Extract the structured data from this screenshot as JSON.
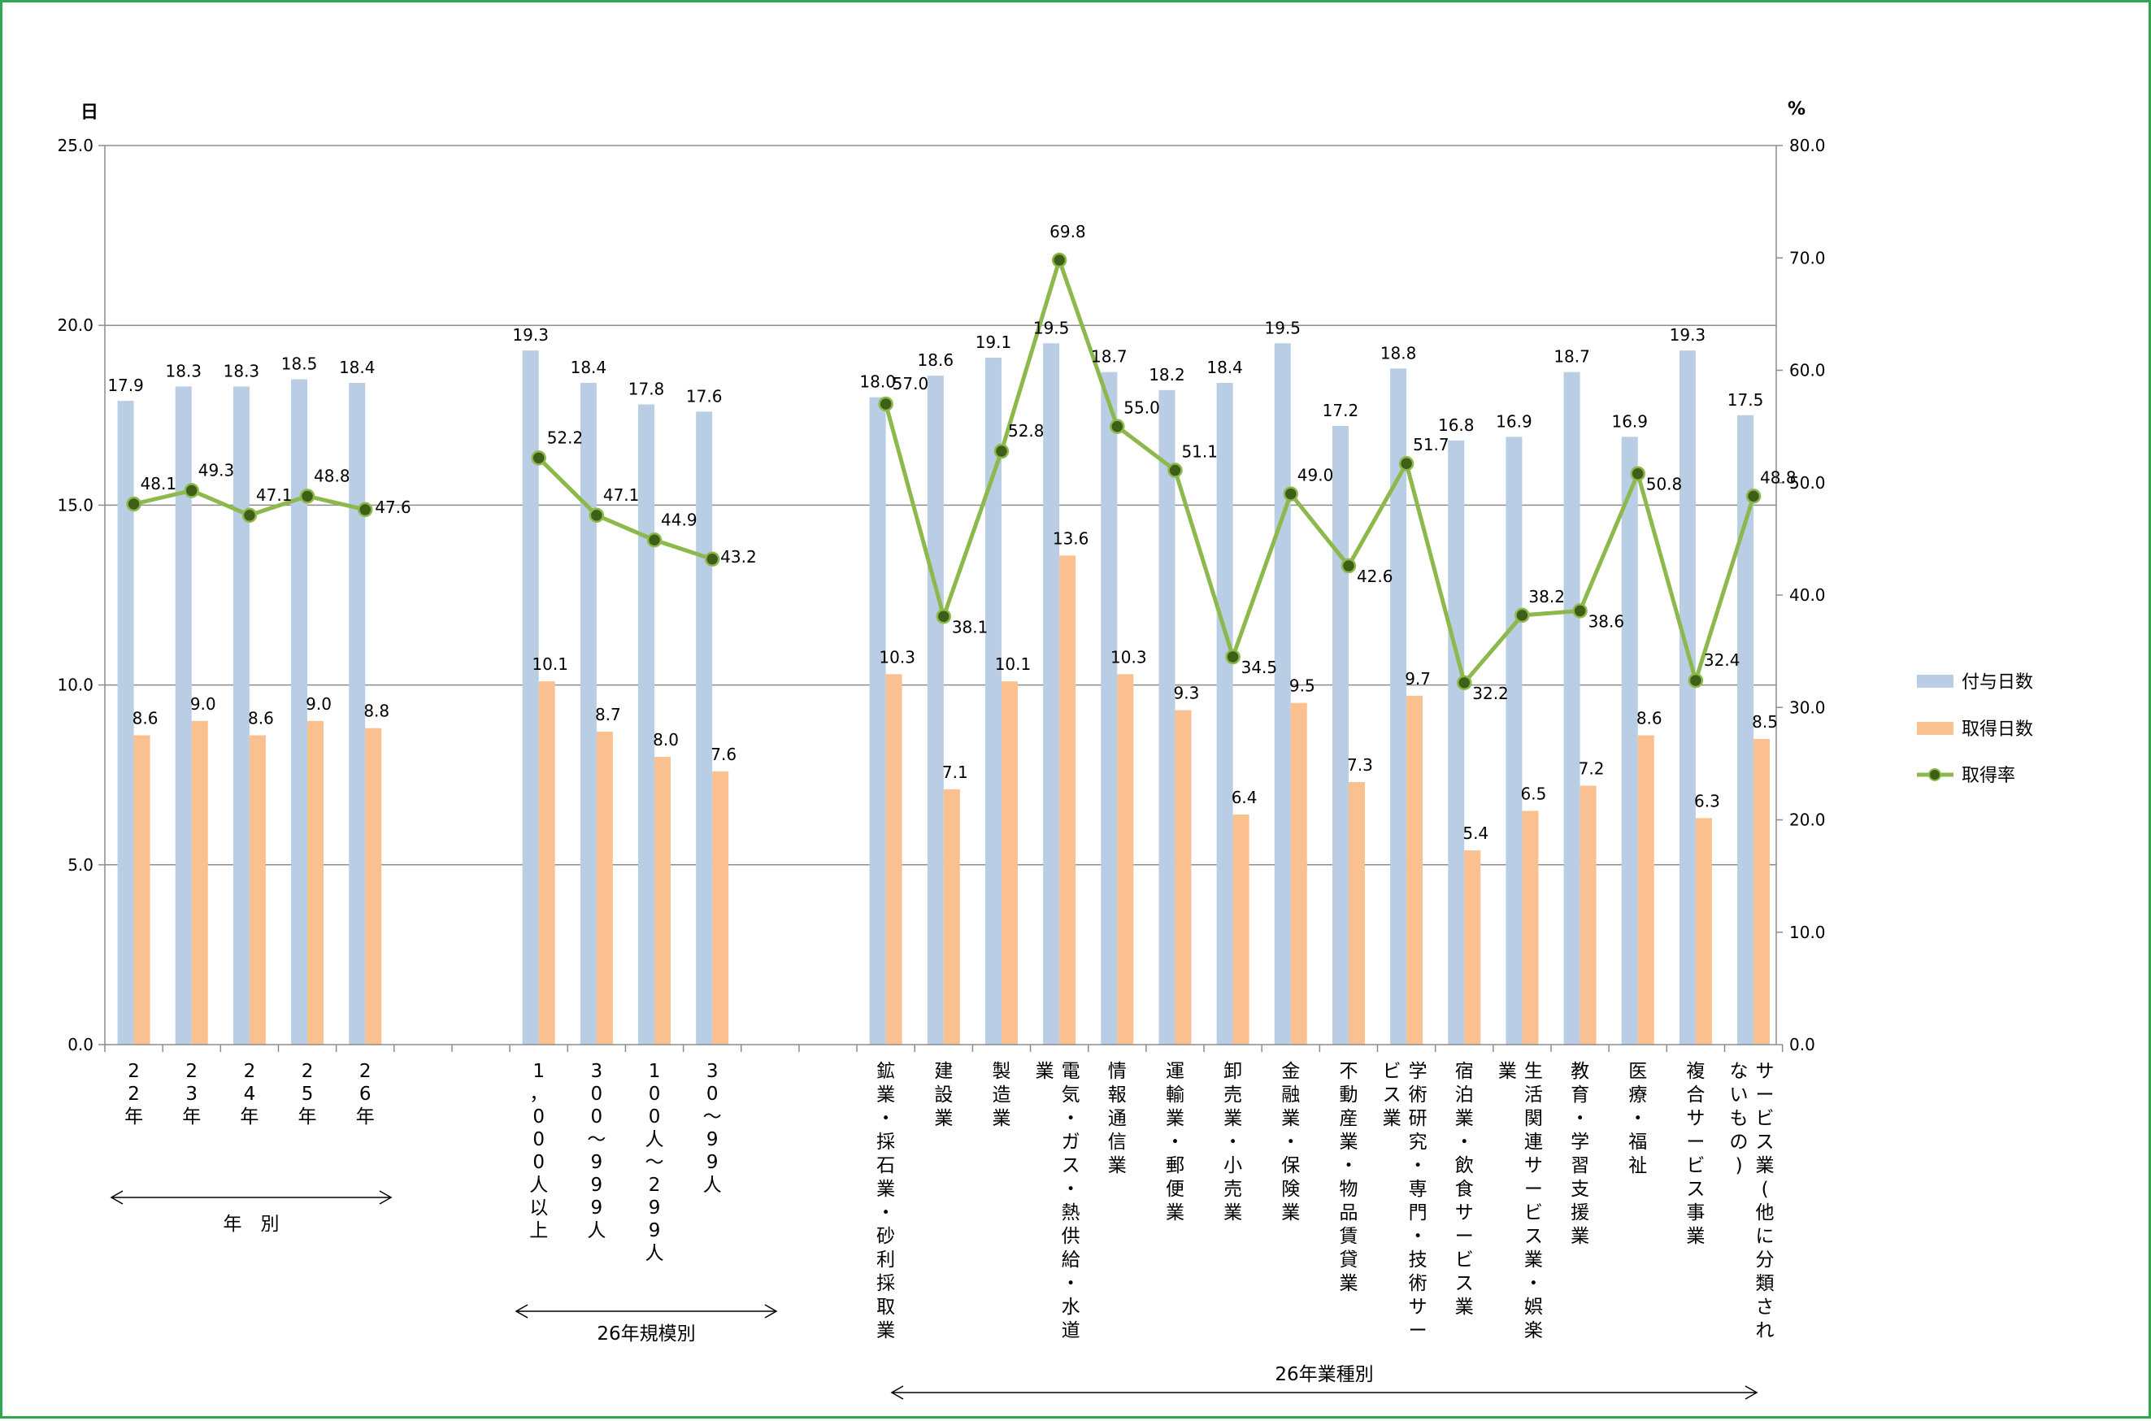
{
  "chart_data": {
    "type": "bar",
    "y_unit_left": "日",
    "y_unit_right": "%",
    "ylim_left": [
      0,
      25
    ],
    "ylim_right": [
      0,
      80
    ],
    "left_ticks": [
      "0.0",
      "5.0",
      "10.0",
      "15.0",
      "20.0",
      "25.0"
    ],
    "right_ticks": [
      "0.0",
      "10.0",
      "20.0",
      "30.0",
      "40.0",
      "50.0",
      "60.0",
      "70.0",
      "80.0"
    ],
    "grid": true,
    "legend_position": "right",
    "groups": [
      {
        "label": "年　別",
        "categories": [
          "22年",
          "23年",
          "24年",
          "25年",
          "26年"
        ],
        "granted": [
          17.9,
          18.3,
          18.3,
          18.5,
          18.4
        ],
        "taken": [
          8.6,
          9.0,
          8.6,
          9.0,
          8.8
        ],
        "rate": [
          48.1,
          49.3,
          47.1,
          48.8,
          47.6
        ]
      },
      {
        "label": "26年規模別",
        "categories": [
          "1，000人以上",
          "300～999人",
          "100人～299人",
          "30～99人"
        ],
        "granted": [
          19.3,
          18.4,
          17.8,
          17.6
        ],
        "taken": [
          10.1,
          8.7,
          8.0,
          7.6
        ],
        "rate": [
          52.2,
          47.1,
          44.9,
          43.2
        ]
      },
      {
        "label": "26年業種別",
        "categories": [
          "鉱業・採石業・砂利採取業",
          "建設業",
          "製造業",
          "電気・ガス・熱供給・水道業",
          "情報通信業",
          "運輸業・郵便業",
          "卸売業・小売業",
          "金融業・保険業",
          "不動産業・物品賃貸業",
          "学術研究・専門・技術サービス業",
          "宿泊業・飲食サービス業",
          "生活関連サービス業・娯楽業",
          "教育・学習支援業",
          "医療・福祉",
          "複合サービス事業",
          "サービス業(他に分類されないもの)"
        ],
        "granted": [
          18.0,
          18.6,
          19.1,
          19.5,
          18.7,
          18.2,
          18.4,
          19.5,
          17.2,
          18.8,
          16.8,
          16.9,
          18.7,
          16.9,
          19.3,
          17.5
        ],
        "taken": [
          10.3,
          7.1,
          10.1,
          13.6,
          10.3,
          9.3,
          6.4,
          9.5,
          7.3,
          9.7,
          5.4,
          6.5,
          7.2,
          8.6,
          6.3,
          8.5
        ],
        "rate": [
          57.0,
          38.1,
          52.8,
          69.8,
          55.0,
          51.1,
          34.5,
          49.0,
          42.6,
          51.7,
          32.2,
          38.2,
          38.6,
          50.8,
          32.4,
          48.8
        ]
      }
    ],
    "series": [
      {
        "name": "付与日数",
        "type": "bar",
        "axis": "left",
        "color": "#b9cde5"
      },
      {
        "name": "取得日数",
        "type": "bar",
        "axis": "left",
        "color": "#fac090"
      },
      {
        "name": "取得率",
        "type": "line",
        "axis": "right",
        "color": "#8db94c",
        "marker_color": "#3d5f18"
      }
    ]
  }
}
